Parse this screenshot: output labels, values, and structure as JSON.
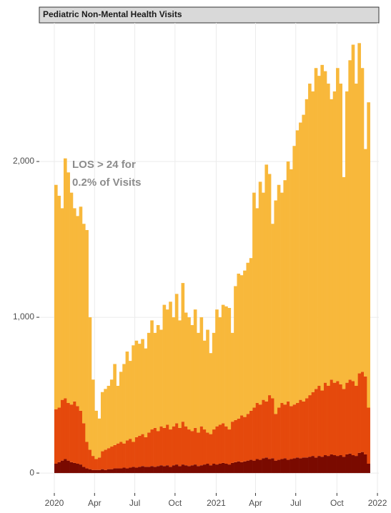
{
  "chart_data": {
    "type": "stacked_bar",
    "title": "Pediatric Non-Mental Health Visits",
    "annotations": [
      "LOS > 24 for",
      "0.2% of Visits"
    ],
    "categories": [
      null,
      null,
      null,
      null,
      null,
      null,
      null,
      null,
      null,
      null,
      null,
      null,
      null,
      null,
      null,
      null,
      null,
      null,
      null,
      null,
      null,
      null,
      null,
      null,
      null,
      null,
      null,
      null,
      null,
      null,
      null,
      null,
      null,
      null,
      null,
      null,
      null,
      null,
      null,
      null,
      null,
      null,
      null,
      null,
      null,
      null,
      null,
      null,
      null,
      null,
      null,
      null,
      null,
      null,
      null,
      null,
      null,
      null,
      null,
      null,
      null,
      null,
      null,
      null,
      null,
      null,
      null,
      null,
      null,
      null,
      null,
      null,
      null,
      null,
      null,
      null,
      null,
      null,
      null,
      null,
      null,
      null,
      null,
      null,
      null,
      null,
      null,
      null,
      null,
      null,
      null,
      null,
      null,
      null,
      null,
      null,
      null,
      null,
      null,
      null,
      null,
      null
    ],
    "series": [
      {
        "color": "#7a0a00",
        "values": [
          60,
          70,
          80,
          90,
          80,
          70,
          65,
          60,
          55,
          40,
          30,
          25,
          20,
          20,
          20,
          25,
          20,
          25,
          25,
          30,
          30,
          30,
          35,
          30,
          35,
          40,
          35,
          40,
          45,
          40,
          40,
          45,
          40,
          45,
          50,
          45,
          50,
          40,
          50,
          55,
          45,
          55,
          50,
          45,
          50,
          55,
          45,
          50,
          55,
          60,
          50,
          60,
          55,
          60,
          65,
          60,
          55,
          65,
          70,
          75,
          70,
          75,
          80,
          85,
          80,
          90,
          85,
          95,
          100,
          90,
          95,
          80,
          85,
          90,
          95,
          85,
          90,
          95,
          100,
          95,
          100,
          100,
          105,
          110,
          100,
          110,
          105,
          115,
          110,
          120,
          115,
          110,
          115,
          105,
          120,
          125,
          115,
          110,
          130,
          135,
          120,
          60
        ]
      },
      {
        "color": "#e5490c",
        "values": [
          350,
          350,
          390,
          390,
          370,
          370,
          395,
          370,
          345,
          280,
          170,
          125,
          90,
          70,
          80,
          115,
          130,
          135,
          145,
          150,
          160,
          170,
          155,
          180,
          185,
          160,
          195,
          200,
          205,
          190,
          220,
          235,
          250,
          225,
          250,
          245,
          260,
          240,
          250,
          265,
          245,
          275,
          250,
          235,
          220,
          235,
          215,
          250,
          225,
          200,
          200,
          220,
          245,
          250,
          255,
          240,
          225,
          265,
          270,
          275,
          300,
          285,
          300,
          315,
          340,
          360,
          355,
          375,
          360,
          410,
          385,
          300,
          335,
          360,
          345,
          375,
          340,
          345,
          350,
          375,
          360,
          380,
          395,
          410,
          440,
          450,
          425,
          465,
          450,
          480,
          465,
          480,
          455,
          435,
          460,
          475,
          475,
          450,
          510,
          515,
          500,
          360
        ]
      },
      {
        "color": "#f8b83b",
        "values": [
          1440,
          1360,
          1230,
          1540,
          1480,
          1360,
          1240,
          1220,
          1310,
          1280,
          1360,
          850,
          490,
          310,
          250,
          380,
          390,
          400,
          430,
          520,
          370,
          450,
          510,
          570,
          500,
          620,
          620,
          590,
          610,
          570,
          640,
          700,
          610,
          680,
          620,
          790,
          740,
          820,
          700,
          830,
          690,
          890,
          730,
          720,
          680,
          760,
          640,
          700,
          570,
          660,
          520,
          620,
          750,
          690,
          760,
          770,
          780,
          570,
          860,
          930,
          900,
          940,
          970,
          980,
          1380,
          1250,
          1430,
          1330,
          1520,
          1420,
          1120,
          1370,
          1430,
          1350,
          1440,
          1540,
          1520,
          1660,
          1750,
          1780,
          1840,
          1920,
          2000,
          1930,
          2060,
          1990,
          2090,
          2000,
          1940,
          1800,
          1870,
          2010,
          1930,
          1360,
          1870,
          2050,
          2160,
          1940,
          2120,
          1950,
          1460,
          1960
        ]
      }
    ],
    "xlim": [
      -4.85,
      104.85
    ],
    "xticks": [
      {
        "value": 0,
        "label": "2020"
      },
      {
        "value": 13,
        "label": "Apr"
      },
      {
        "value": 26,
        "label": "Jul"
      },
      {
        "value": 39,
        "label": "Oct"
      },
      {
        "value": 52.3,
        "label": "2021"
      },
      {
        "value": 65,
        "label": "Apr"
      },
      {
        "value": 78,
        "label": "Jul"
      },
      {
        "value": 91.3,
        "label": "Oct"
      },
      {
        "value": 104.4,
        "label": "2022"
      }
    ],
    "ylim": [
      -128,
      2890
    ],
    "yticks": [
      0,
      {
        "value": 1000,
        "label": "1,000"
      },
      {
        "value": 2000,
        "label": "2,000"
      }
    ],
    "grid": true
  }
}
